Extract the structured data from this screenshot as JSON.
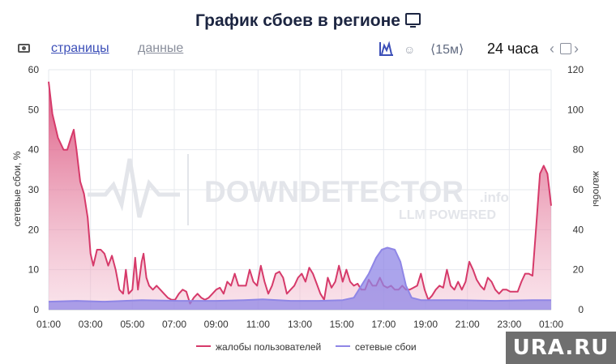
{
  "header": {
    "title": "График сбоев в регионе",
    "title_icon": "monitor-icon"
  },
  "toolbar": {
    "camera_icon": "camera-icon",
    "tab_pages": "страницы",
    "tab_data": "данные",
    "chart_mode_icon": "area-chart-icon",
    "person_icon": "person-icon",
    "person_glyph": "☺",
    "interval": "⟨15м⟩",
    "period": "24 часа",
    "nav_prev": "‹",
    "nav_next": "›",
    "calendar_icon": "calendar-icon"
  },
  "watermark": {
    "main": "DOWNDETECTOR",
    "suffix": ".info",
    "sub": "LLM POWERED"
  },
  "badge": "URA.RU",
  "chart_data": {
    "type": "area",
    "xlabels": [
      "01:00",
      "03:00",
      "05:00",
      "07:00",
      "09:00",
      "11:00",
      "13:00",
      "15:00",
      "17:00",
      "19:00",
      "21:00",
      "23:00",
      "01:00"
    ],
    "y_left": {
      "label": "сетевые сбои, %",
      "ticks": [
        "0",
        "10",
        "20",
        "30",
        "40",
        "50",
        "60"
      ],
      "range": [
        0,
        60
      ]
    },
    "y_right": {
      "label": "жалобы",
      "ticks": [
        "0",
        "20",
        "40",
        "60",
        "80",
        "100",
        "120"
      ],
      "range": [
        0,
        120
      ]
    },
    "grid": true,
    "legend_position": "bottom",
    "series": [
      {
        "name": "жалобы пользователей",
        "axis": "right",
        "color": "#d63a6a",
        "points": [
          [
            0,
            114
          ],
          [
            0.2,
            98
          ],
          [
            0.5,
            86
          ],
          [
            0.8,
            80
          ],
          [
            1.0,
            80
          ],
          [
            1.2,
            86
          ],
          [
            1.35,
            90
          ],
          [
            1.5,
            80
          ],
          [
            1.7,
            64
          ],
          [
            1.9,
            58
          ],
          [
            2.1,
            46
          ],
          [
            2.25,
            28
          ],
          [
            2.4,
            22
          ],
          [
            2.6,
            30
          ],
          [
            2.8,
            30
          ],
          [
            3.0,
            28
          ],
          [
            3.2,
            22
          ],
          [
            3.4,
            27
          ],
          [
            3.6,
            20
          ],
          [
            3.8,
            10
          ],
          [
            4.0,
            8
          ],
          [
            4.15,
            20
          ],
          [
            4.3,
            8
          ],
          [
            4.5,
            10
          ],
          [
            4.65,
            26
          ],
          [
            4.8,
            10
          ],
          [
            5.0,
            24
          ],
          [
            5.1,
            28
          ],
          [
            5.25,
            16
          ],
          [
            5.4,
            12
          ],
          [
            5.6,
            10
          ],
          [
            5.8,
            12
          ],
          [
            6.0,
            10
          ],
          [
            6.2,
            8
          ],
          [
            6.4,
            6
          ],
          [
            6.6,
            5
          ],
          [
            6.8,
            5
          ],
          [
            7.0,
            8
          ],
          [
            7.2,
            10
          ],
          [
            7.4,
            9
          ],
          [
            7.6,
            3
          ],
          [
            7.8,
            6
          ],
          [
            8.0,
            8
          ],
          [
            8.2,
            6
          ],
          [
            8.4,
            5
          ],
          [
            8.6,
            6
          ],
          [
            8.8,
            8
          ],
          [
            9.0,
            10
          ],
          [
            9.2,
            11
          ],
          [
            9.4,
            8
          ],
          [
            9.6,
            14
          ],
          [
            9.8,
            12
          ],
          [
            10.0,
            18
          ],
          [
            10.2,
            12
          ],
          [
            10.4,
            12
          ],
          [
            10.6,
            12
          ],
          [
            10.8,
            20
          ],
          [
            11.0,
            14
          ],
          [
            11.2,
            12
          ],
          [
            11.4,
            22
          ],
          [
            11.6,
            14
          ],
          [
            11.8,
            8
          ],
          [
            12.0,
            12
          ],
          [
            12.2,
            18
          ],
          [
            12.4,
            19
          ],
          [
            12.6,
            16
          ],
          [
            12.8,
            8
          ],
          [
            13.0,
            10
          ],
          [
            13.2,
            12
          ],
          [
            13.4,
            16
          ],
          [
            13.6,
            18
          ],
          [
            13.8,
            14
          ],
          [
            14.0,
            21
          ],
          [
            14.2,
            18
          ],
          [
            14.4,
            13
          ],
          [
            14.6,
            8
          ],
          [
            14.8,
            5
          ],
          [
            15.0,
            16
          ],
          [
            15.2,
            11
          ],
          [
            15.4,
            14
          ],
          [
            15.6,
            22
          ],
          [
            15.8,
            14
          ],
          [
            16.0,
            20
          ],
          [
            16.2,
            14
          ],
          [
            16.4,
            12
          ],
          [
            16.6,
            13
          ],
          [
            16.8,
            10
          ],
          [
            17.0,
            10
          ],
          [
            17.2,
            15
          ],
          [
            17.4,
            12
          ],
          [
            17.6,
            12
          ],
          [
            17.8,
            16
          ],
          [
            18.0,
            12
          ],
          [
            18.2,
            11
          ],
          [
            18.4,
            12
          ],
          [
            18.6,
            10
          ],
          [
            18.8,
            10
          ],
          [
            19.0,
            12
          ],
          [
            19.2,
            10
          ],
          [
            19.4,
            10
          ],
          [
            19.6,
            11
          ],
          [
            19.8,
            12
          ],
          [
            20.0,
            18
          ],
          [
            20.2,
            10
          ],
          [
            20.4,
            5
          ],
          [
            20.6,
            7
          ],
          [
            20.8,
            10
          ],
          [
            21.0,
            12
          ],
          [
            21.2,
            11
          ],
          [
            21.4,
            20
          ],
          [
            21.6,
            12
          ],
          [
            21.8,
            10
          ],
          [
            22.0,
            14
          ],
          [
            22.2,
            10
          ],
          [
            22.4,
            14
          ],
          [
            22.6,
            24
          ],
          [
            22.8,
            20
          ],
          [
            23.0,
            15
          ],
          [
            23.2,
            12
          ],
          [
            23.4,
            10
          ],
          [
            23.6,
            16
          ],
          [
            23.8,
            14
          ],
          [
            24.0,
            10
          ],
          [
            24.2,
            8
          ],
          [
            24.4,
            10
          ],
          [
            24.6,
            10
          ],
          [
            24.8,
            9
          ],
          [
            25.0,
            9
          ],
          [
            25.2,
            9
          ],
          [
            25.4,
            14
          ],
          [
            25.6,
            18
          ],
          [
            25.8,
            18
          ],
          [
            26.0,
            17
          ],
          [
            26.2,
            42
          ],
          [
            26.4,
            68
          ],
          [
            26.6,
            72
          ],
          [
            26.8,
            68
          ],
          [
            27.0,
            52
          ]
        ]
      },
      {
        "name": "сетевые сбои",
        "axis": "left",
        "color": "#8f86e6",
        "points": [
          [
            0,
            2
          ],
          [
            1.5,
            2.2
          ],
          [
            3,
            2
          ],
          [
            5,
            2.4
          ],
          [
            7,
            2.2
          ],
          [
            9,
            2.2
          ],
          [
            10.5,
            2.4
          ],
          [
            11.5,
            2.6
          ],
          [
            13,
            2.2
          ],
          [
            14.5,
            2.2
          ],
          [
            15.8,
            2.4
          ],
          [
            16.4,
            3
          ],
          [
            16.8,
            6
          ],
          [
            17.2,
            9
          ],
          [
            17.6,
            13
          ],
          [
            17.9,
            15
          ],
          [
            18.2,
            15.5
          ],
          [
            18.6,
            15
          ],
          [
            18.9,
            12
          ],
          [
            19.2,
            6
          ],
          [
            19.5,
            3
          ],
          [
            20,
            2.4
          ],
          [
            22,
            2.4
          ],
          [
            24,
            2.2
          ],
          [
            26,
            2.4
          ],
          [
            27,
            2.4
          ]
        ]
      }
    ]
  }
}
